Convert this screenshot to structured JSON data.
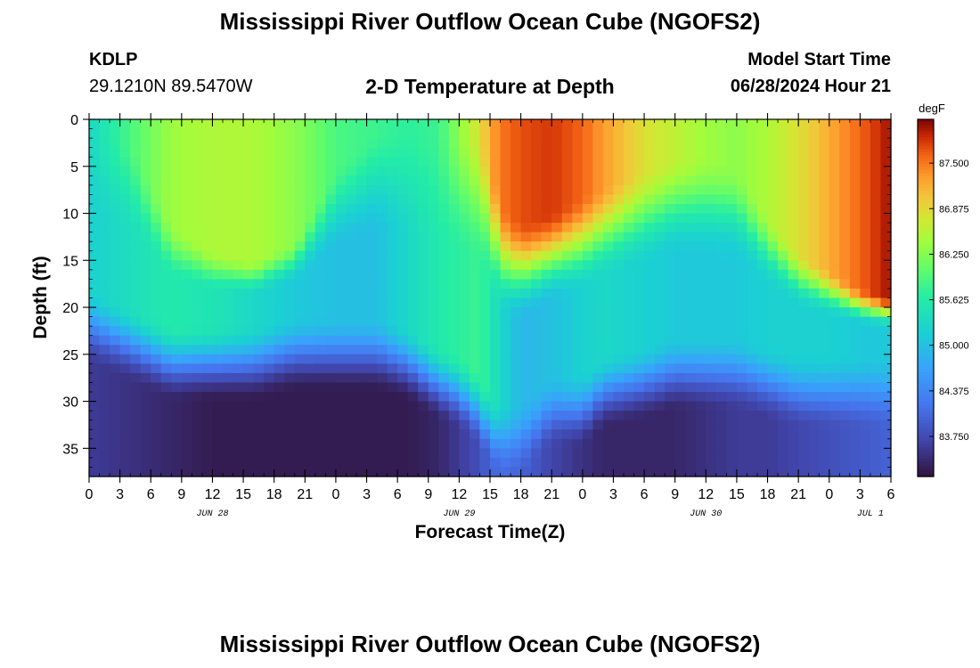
{
  "header": {
    "title": "Mississippi River Outflow Ocean Cube (NGOFS2)",
    "station_id": "KDLP",
    "station_coords": "29.1210N  89.5470W",
    "subtitle": "2-D Temperature at Depth",
    "model_start_label": "Model Start Time",
    "model_start_value": "06/28/2024 Hour 21"
  },
  "footer": {
    "title": "Mississippi River Outflow Ocean Cube (NGOFS2)"
  },
  "chart_data": {
    "type": "heatmap",
    "title": "2-D Temperature at Depth",
    "xlabel": "Forecast Time(Z)",
    "ylabel": "Depth (ft)",
    "x_range": [
      0,
      78
    ],
    "y_range": [
      0,
      38
    ],
    "y_inverted": true,
    "x_ticks": [
      0,
      3,
      6,
      9,
      12,
      15,
      18,
      21,
      24,
      27,
      30,
      33,
      36,
      39,
      42,
      45,
      48,
      51,
      54,
      57,
      60,
      63,
      66,
      69,
      72,
      75,
      78
    ],
    "x_tick_labels": [
      "0",
      "3",
      "6",
      "9",
      "12",
      "15",
      "18",
      "21",
      "0",
      "3",
      "6",
      "9",
      "12",
      "15",
      "18",
      "21",
      "0",
      "3",
      "6",
      "9",
      "12",
      "15",
      "18",
      "21",
      "0",
      "3",
      "6"
    ],
    "date_labels": [
      {
        "x": 12,
        "text": "JUN 28"
      },
      {
        "x": 36,
        "text": "JUN 29"
      },
      {
        "x": 60,
        "text": "JUN 30"
      },
      {
        "x": 76,
        "text": "JUL 1"
      }
    ],
    "y_ticks": [
      0,
      5,
      10,
      15,
      20,
      25,
      30,
      35
    ],
    "colorbar": {
      "unit": "degF",
      "min": 83.2,
      "max": 88.1,
      "ticks": [
        83.75,
        84.375,
        85.0,
        85.625,
        86.25,
        86.875,
        87.5
      ],
      "tick_labels": [
        "83.750",
        "84.375",
        "85.000",
        "85.625",
        "86.250",
        "86.875",
        "87.500"
      ]
    },
    "profiles": {
      "x": [
        0,
        4,
        8,
        12,
        16,
        20,
        24,
        28,
        31,
        34,
        36,
        38,
        39,
        40,
        42,
        45,
        48,
        50,
        54,
        57,
        60,
        63,
        66,
        69,
        72,
        75,
        78
      ],
      "surface": [
        85.3,
        85.9,
        86.4,
        86.5,
        86.5,
        86.3,
        85.9,
        85.8,
        85.7,
        85.8,
        86.3,
        86.8,
        87.2,
        87.5,
        87.7,
        87.8,
        87.6,
        87.3,
        86.8,
        86.6,
        86.4,
        86.3,
        86.5,
        86.8,
        87.2,
        87.6,
        88.0
      ],
      "warm_depth": [
        1,
        2,
        11,
        14,
        15,
        13,
        5,
        1,
        1,
        1,
        1,
        1,
        4,
        9,
        11,
        10,
        8,
        7,
        5,
        4,
        4,
        5,
        10,
        14,
        16,
        18,
        19
      ],
      "mid_temp": [
        85.2,
        85.4,
        85.6,
        85.5,
        85.3,
        85.1,
        85.0,
        85.0,
        85.3,
        85.6,
        85.7,
        85.8,
        85.6,
        85.3,
        84.9,
        85.0,
        85.2,
        85.3,
        85.2,
        85.1,
        85.1,
        85.1,
        85.2,
        85.2,
        85.2,
        85.1,
        85.1
      ],
      "cool_depth": [
        18,
        20,
        22,
        22,
        22,
        21,
        21,
        21,
        22,
        24,
        25,
        27,
        29,
        30,
        30,
        27,
        27,
        25,
        24,
        23,
        23,
        23,
        24,
        25,
        25,
        25,
        25
      ],
      "deep_temp": [
        83.6,
        83.5,
        83.4,
        83.3,
        83.3,
        83.3,
        83.3,
        83.3,
        83.3,
        83.4,
        83.6,
        83.8,
        84.0,
        84.1,
        84.0,
        83.7,
        83.5,
        83.4,
        83.4,
        83.4,
        83.5,
        83.6,
        83.6,
        83.7,
        83.8,
        83.9,
        84.0
      ]
    }
  }
}
